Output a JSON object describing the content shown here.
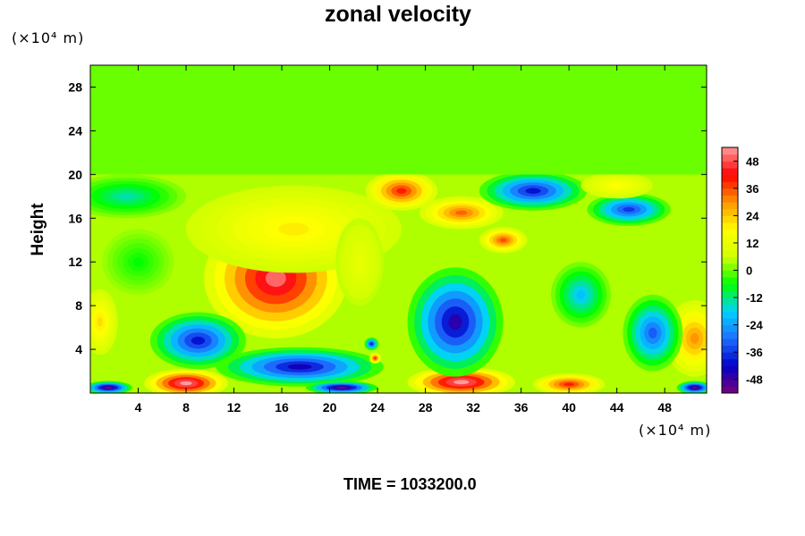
{
  "chart_data": {
    "type": "heatmap",
    "title": "zonal velocity",
    "xlabel": "",
    "ylabel": "Height",
    "x_unit": "(×10⁴ m)",
    "y_unit": "(×10⁴ m)",
    "xlim": [
      0,
      51.5
    ],
    "ylim": [
      0,
      30
    ],
    "x_ticks": [
      "4",
      "8",
      "12",
      "16",
      "20",
      "24",
      "28",
      "32",
      "36",
      "40",
      "44",
      "48"
    ],
    "y_ticks": [
      "4",
      "8",
      "12",
      "16",
      "20",
      "24",
      "28"
    ],
    "colorbar": {
      "range": [
        -54,
        54
      ],
      "ticks": [
        "48",
        "36",
        "24",
        "12",
        "0",
        "-12",
        "-24",
        "-36",
        "-48"
      ],
      "colors": [
        "#7a007a",
        "#0000c8",
        "#1e6eff",
        "#00d2ff",
        "#00ff00",
        "#d2ff00",
        "#ffff00",
        "#ff9600",
        "#ff0000",
        "#ff9b9b"
      ]
    },
    "features": [
      {
        "x": 15.5,
        "y": 10.5,
        "value": 50,
        "rx": 6,
        "ry": 5.5
      },
      {
        "x": 17,
        "y": 15,
        "value": 20,
        "rx": 9,
        "ry": 4
      },
      {
        "x": 26,
        "y": 18.5,
        "value": 40,
        "rx": 3,
        "ry": 1.8
      },
      {
        "x": 31,
        "y": 16.5,
        "value": 34,
        "rx": 3.5,
        "ry": 1.5
      },
      {
        "x": 34.5,
        "y": 14,
        "value": 36,
        "rx": 2,
        "ry": 1.2
      },
      {
        "x": 8,
        "y": 0.9,
        "value": 54,
        "rx": 3.5,
        "ry": 1.3
      },
      {
        "x": 31,
        "y": 1.0,
        "value": 54,
        "rx": 4.5,
        "ry": 1.4
      },
      {
        "x": 40,
        "y": 0.8,
        "value": 40,
        "rx": 3,
        "ry": 1
      },
      {
        "x": 50.5,
        "y": 5,
        "value": 30,
        "rx": 2.5,
        "ry": 3.5
      },
      {
        "x": 0.8,
        "y": 6.5,
        "value": 22,
        "rx": 1.5,
        "ry": 3
      },
      {
        "x": 9,
        "y": 4.8,
        "value": -40,
        "rx": 4,
        "ry": 2.6
      },
      {
        "x": 17.5,
        "y": 2.4,
        "value": -44,
        "rx": 7,
        "ry": 1.8
      },
      {
        "x": 30.5,
        "y": 6.5,
        "value": -46,
        "rx": 4,
        "ry": 5
      },
      {
        "x": 37,
        "y": 18.5,
        "value": -40,
        "rx": 4.5,
        "ry": 1.8
      },
      {
        "x": 45,
        "y": 16.8,
        "value": -36,
        "rx": 3.5,
        "ry": 1.5
      },
      {
        "x": 47,
        "y": 5.5,
        "value": -32,
        "rx": 2.5,
        "ry": 3.5
      },
      {
        "x": 41,
        "y": 9,
        "value": -20,
        "rx": 2.5,
        "ry": 3
      },
      {
        "x": 44,
        "y": 19,
        "value": 18,
        "rx": 3,
        "ry": 1.2
      },
      {
        "x": 22.5,
        "y": 12,
        "value": 12,
        "rx": 2,
        "ry": 4
      },
      {
        "x": 4,
        "y": 12,
        "value": -6,
        "rx": 3,
        "ry": 3
      },
      {
        "x": 3,
        "y": 18,
        "value": -14,
        "rx": 5,
        "ry": 2
      },
      {
        "x": 1.5,
        "y": 0.5,
        "value": -54,
        "rx": 2,
        "ry": 0.6
      },
      {
        "x": 21,
        "y": 0.5,
        "value": -54,
        "rx": 3,
        "ry": 0.6
      },
      {
        "x": 50.5,
        "y": 0.5,
        "value": -54,
        "rx": 1.5,
        "ry": 0.6
      },
      {
        "x": 23.8,
        "y": 3.2,
        "value": 40,
        "rx": 0.5,
        "ry": 0.5
      },
      {
        "x": 23.5,
        "y": 4.5,
        "value": -40,
        "rx": 0.6,
        "ry": 0.6
      }
    ],
    "upper_layer": {
      "y_from": 20,
      "value": 0
    }
  },
  "footer": {
    "time_label": "TIME = 1033200.0"
  }
}
